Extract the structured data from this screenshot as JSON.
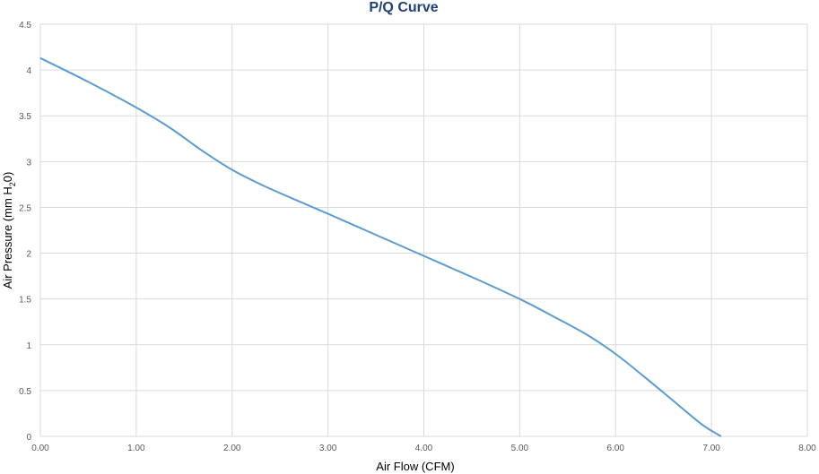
{
  "chart_data": {
    "type": "line",
    "title": "P/Q Curve",
    "xlabel": "Air Flow (CFM)",
    "ylabel_parts": [
      "Air Pressure (mm H",
      "2",
      "0)"
    ],
    "xlim": [
      0,
      8
    ],
    "ylim": [
      0,
      4.5
    ],
    "x_ticks": [
      "0.00",
      "1.00",
      "2.00",
      "3.00",
      "4.00",
      "5.00",
      "6.00",
      "7.00",
      "8.00"
    ],
    "y_ticks": [
      "0",
      "0.5",
      "1",
      "1.5",
      "2",
      "2.5",
      "3",
      "3.5",
      "4",
      "4.5"
    ],
    "grid": true,
    "series": [
      {
        "x": [
          0.0,
          0.5,
          1.0,
          1.35,
          1.7,
          2.0,
          2.3,
          2.6,
          3.0,
          3.5,
          4.0,
          4.5,
          5.0,
          5.35,
          5.7,
          6.0,
          6.3,
          6.6,
          6.9,
          7.1
        ],
        "y": [
          4.13,
          3.87,
          3.59,
          3.37,
          3.11,
          2.91,
          2.75,
          2.61,
          2.43,
          2.2,
          1.97,
          1.74,
          1.5,
          1.31,
          1.11,
          0.9,
          0.65,
          0.39,
          0.13,
          0.0
        ]
      }
    ],
    "colors": {
      "title": "#1f3f77",
      "line": "#5b9bd5"
    }
  }
}
